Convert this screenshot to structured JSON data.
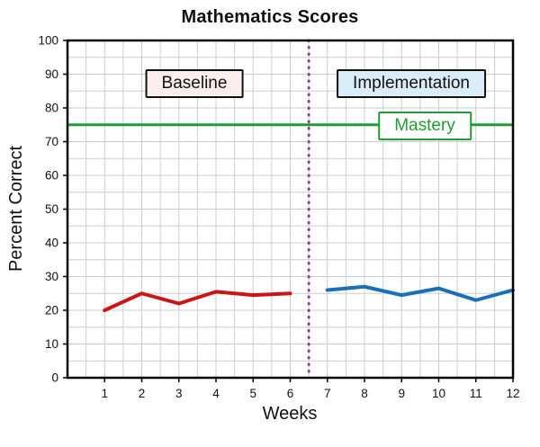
{
  "title": "Mathematics Scores",
  "annotations": {
    "baseline_label": "Baseline",
    "implementation_label": "Implementation",
    "mastery_label": "Mastery"
  },
  "colors": {
    "baseline_line": "#cc1414",
    "implementation_line": "#1b6fba",
    "mastery_line": "#1f9d33",
    "divider_line": "#7a3f9d",
    "grid": "#c9cdd2",
    "frame": "#000000",
    "baseline_box_bg": "#fdeeee",
    "implementation_box_bg": "#d9ecf8",
    "mastery_box_bg": "#ffffff"
  },
  "chart_data": {
    "type": "line",
    "title": "Mathematics Scores",
    "xlabel": "Weeks",
    "ylabel": "Percent Correct",
    "xlim": [
      0,
      12
    ],
    "ylim": [
      0,
      100
    ],
    "x_ticks": [
      1,
      2,
      3,
      4,
      5,
      6,
      7,
      8,
      9,
      10,
      11,
      12
    ],
    "y_ticks": [
      0,
      10,
      20,
      30,
      40,
      50,
      60,
      70,
      80,
      90,
      100
    ],
    "grid": true,
    "grid_minor_x_step": 0.5,
    "grid_minor_y_step": 5,
    "legend_position": "none",
    "series": [
      {
        "name": "Baseline",
        "color": "#cc1414",
        "x": [
          1,
          2,
          3,
          4,
          5,
          6
        ],
        "values": [
          20,
          25,
          22,
          25.5,
          24.5,
          25
        ]
      },
      {
        "name": "Implementation",
        "color": "#1b6fba",
        "x": [
          7,
          8,
          9,
          10,
          11,
          12
        ],
        "values": [
          26,
          27,
          24.5,
          26.5,
          23,
          26
        ]
      }
    ],
    "reference_lines": [
      {
        "name": "Mastery",
        "orientation": "horizontal",
        "value": 75,
        "color": "#1f9d33",
        "style": "solid",
        "width": 3
      },
      {
        "name": "Phase divider",
        "orientation": "vertical",
        "value": 6.5,
        "color": "#7a3f9d",
        "style": "dotted",
        "width": 3
      }
    ]
  }
}
